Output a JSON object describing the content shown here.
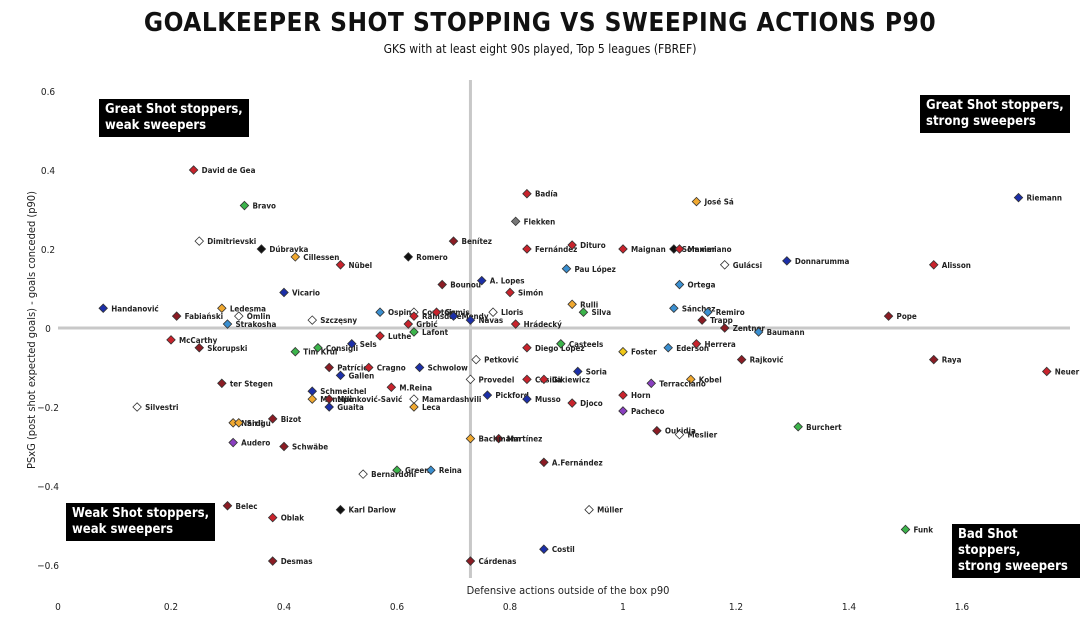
{
  "title": "GOALKEEPER SHOT STOPPING VS SWEEPING ACTIONS P90",
  "subtitle": "GKS with at least eight 90s played, Top 5 leagues (FBREF)",
  "quadrants": {
    "top_left": "Great Shot stoppers,\nweak sweepers",
    "top_right": "Great Shot stoppers,\nstrong sweepers",
    "bottom_left": "Weak  Shot stoppers,\nweak sweepers",
    "bottom_right": "Bad Shot stoppers,\nstrong sweepers"
  },
  "chart_data": {
    "type": "scatter",
    "xlabel": "Defensive actions outside of the box p90",
    "ylabel": "PSxG (post shot expected goals) - goals conceded (p90)",
    "xlim": [
      0,
      1.8
    ],
    "ylim": [
      -0.7,
      0.63
    ],
    "x_ticks": [
      0,
      0.2,
      0.4,
      0.6,
      0.8,
      1,
      1.2,
      1.4,
      1.6
    ],
    "y_ticks": [
      0.6,
      0.4,
      0.2,
      0,
      -0.2,
      -0.4,
      -0.6
    ],
    "reference_lines": {
      "x": 0.73,
      "y": 0
    },
    "grid": false,
    "points": [
      {
        "name": "David de Gea",
        "x": 0.24,
        "y": 0.4,
        "color": "#c8232c"
      },
      {
        "name": "Bravo",
        "x": 0.33,
        "y": 0.31,
        "color": "#3cb44b"
      },
      {
        "name": "Dimitrievski",
        "x": 0.25,
        "y": 0.22,
        "color": "#ffffff"
      },
      {
        "name": "Dúbravka",
        "x": 0.36,
        "y": 0.2,
        "color": "#111111"
      },
      {
        "name": "Cillessen",
        "x": 0.42,
        "y": 0.18,
        "color": "#f0a830"
      },
      {
        "name": "Nübel",
        "x": 0.5,
        "y": 0.16,
        "color": "#c8232c"
      },
      {
        "name": "Romero",
        "x": 0.62,
        "y": 0.18,
        "color": "#111111"
      },
      {
        "name": "Benítez",
        "x": 0.7,
        "y": 0.22,
        "color": "#8b1c24"
      },
      {
        "name": "Badía",
        "x": 0.83,
        "y": 0.34,
        "color": "#c8232c"
      },
      {
        "name": "Flekken",
        "x": 0.81,
        "y": 0.27,
        "color": "#777777"
      },
      {
        "name": "Fernández",
        "x": 0.83,
        "y": 0.2,
        "color": "#c8232c"
      },
      {
        "name": "Dituro",
        "x": 0.91,
        "y": 0.21,
        "color": "#c8232c"
      },
      {
        "name": "Maignan",
        "x": 1.0,
        "y": 0.2,
        "color": "#c8232c"
      },
      {
        "name": "Sommer",
        "x": 1.09,
        "y": 0.2,
        "color": "#111111"
      },
      {
        "name": "Maximiano",
        "x": 1.1,
        "y": 0.2,
        "color": "#c8232c"
      },
      {
        "name": "José Sá",
        "x": 1.13,
        "y": 0.32,
        "color": "#f0a830"
      },
      {
        "name": "Pau López",
        "x": 0.9,
        "y": 0.15,
        "color": "#3a8fd0"
      },
      {
        "name": "Gulácsi",
        "x": 1.18,
        "y": 0.16,
        "color": "#ffffff"
      },
      {
        "name": "Donnarumma",
        "x": 1.29,
        "y": 0.17,
        "color": "#1c2fa8"
      },
      {
        "name": "Alisson",
        "x": 1.55,
        "y": 0.16,
        "color": "#c8232c"
      },
      {
        "name": "Riemann",
        "x": 1.7,
        "y": 0.33,
        "color": "#1c2fa8"
      },
      {
        "name": "Handanović",
        "x": 0.08,
        "y": 0.05,
        "color": "#1c2fa8"
      },
      {
        "name": "Ledesma",
        "x": 0.29,
        "y": 0.05,
        "color": "#f0a830"
      },
      {
        "name": "Fabiański",
        "x": 0.21,
        "y": 0.03,
        "color": "#8b1c24"
      },
      {
        "name": "Ómlin",
        "x": 0.32,
        "y": 0.03,
        "color": "#ffffff"
      },
      {
        "name": "Strakosha",
        "x": 0.3,
        "y": 0.01,
        "color": "#3a8fd0"
      },
      {
        "name": "Vicario",
        "x": 0.4,
        "y": 0.09,
        "color": "#1c2fa8"
      },
      {
        "name": "Szczęsny",
        "x": 0.45,
        "y": 0.02,
        "color": "#ffffff"
      },
      {
        "name": "Ospina",
        "x": 0.57,
        "y": 0.04,
        "color": "#3a8fd0"
      },
      {
        "name": "Courtois",
        "x": 0.63,
        "y": 0.04,
        "color": "#ffffff"
      },
      {
        "name": "Ramsdale",
        "x": 0.63,
        "y": 0.03,
        "color": "#c8232c"
      },
      {
        "name": "Gomis",
        "x": 0.67,
        "y": 0.04,
        "color": "#c8232c"
      },
      {
        "name": "Mendy",
        "x": 0.7,
        "y": 0.03,
        "color": "#1c2fa8"
      },
      {
        "name": "Navas",
        "x": 0.73,
        "y": 0.02,
        "color": "#1c2fa8"
      },
      {
        "name": "Grbić",
        "x": 0.62,
        "y": 0.01,
        "color": "#c8232c"
      },
      {
        "name": "Lafont",
        "x": 0.63,
        "y": -0.01,
        "color": "#3cb44b"
      },
      {
        "name": "Bounou",
        "x": 0.68,
        "y": 0.11,
        "color": "#8b1c24"
      },
      {
        "name": "A. Lopes",
        "x": 0.75,
        "y": 0.12,
        "color": "#1c2fa8"
      },
      {
        "name": "Simón",
        "x": 0.8,
        "y": 0.09,
        "color": "#c8232c"
      },
      {
        "name": "Lloris",
        "x": 0.77,
        "y": 0.04,
        "color": "#ffffff"
      },
      {
        "name": "Hrádecký",
        "x": 0.81,
        "y": 0.01,
        "color": "#c8232c"
      },
      {
        "name": "Rulli",
        "x": 0.91,
        "y": 0.06,
        "color": "#f0a830"
      },
      {
        "name": "Silva",
        "x": 0.93,
        "y": 0.04,
        "color": "#3cb44b"
      },
      {
        "name": "Ortega",
        "x": 1.1,
        "y": 0.11,
        "color": "#3a8fd0"
      },
      {
        "name": "Sánchez",
        "x": 1.09,
        "y": 0.05,
        "color": "#3a8fd0"
      },
      {
        "name": "Remiro",
        "x": 1.15,
        "y": 0.04,
        "color": "#3a8fd0"
      },
      {
        "name": "Trapp",
        "x": 1.14,
        "y": 0.02,
        "color": "#8b1c24"
      },
      {
        "name": "Pope",
        "x": 1.47,
        "y": 0.03,
        "color": "#8b1c24"
      },
      {
        "name": "Zentner",
        "x": 1.18,
        "y": 0.0,
        "color": "#8b1c24"
      },
      {
        "name": "Baumann",
        "x": 1.24,
        "y": -0.01,
        "color": "#3a8fd0"
      },
      {
        "name": "McCarthy",
        "x": 0.2,
        "y": -0.03,
        "color": "#c8232c"
      },
      {
        "name": "Skorupski",
        "x": 0.25,
        "y": -0.05,
        "color": "#8b1c24"
      },
      {
        "name": "Tim Krul",
        "x": 0.42,
        "y": -0.06,
        "color": "#3cb44b"
      },
      {
        "name": "Consigli",
        "x": 0.46,
        "y": -0.05,
        "color": "#3cb44b"
      },
      {
        "name": "Sels",
        "x": 0.52,
        "y": -0.04,
        "color": "#1c2fa8"
      },
      {
        "name": "Luthe",
        "x": 0.57,
        "y": -0.02,
        "color": "#c8232c"
      },
      {
        "name": "Patrício",
        "x": 0.48,
        "y": -0.1,
        "color": "#8b1c24"
      },
      {
        "name": "Gallen",
        "x": 0.5,
        "y": -0.12,
        "color": "#1c2fa8"
      },
      {
        "name": "Cragno",
        "x": 0.55,
        "y": -0.1,
        "color": "#c8232c"
      },
      {
        "name": "Schwolow",
        "x": 0.64,
        "y": -0.1,
        "color": "#1c2fa8"
      },
      {
        "name": "Petković",
        "x": 0.74,
        "y": -0.08,
        "color": "#ffffff"
      },
      {
        "name": "Provedel",
        "x": 0.73,
        "y": -0.13,
        "color": "#ffffff"
      },
      {
        "name": "Diego López",
        "x": 0.83,
        "y": -0.05,
        "color": "#c8232c"
      },
      {
        "name": "Casteels",
        "x": 0.89,
        "y": -0.04,
        "color": "#3cb44b"
      },
      {
        "name": "Casilla",
        "x": 0.83,
        "y": -0.13,
        "color": "#c8232c"
      },
      {
        "name": "Gikiewicz",
        "x": 0.86,
        "y": -0.13,
        "color": "#c8232c"
      },
      {
        "name": "Soria",
        "x": 0.92,
        "y": -0.11,
        "color": "#1c2fa8"
      },
      {
        "name": "Foster",
        "x": 1.0,
        "y": -0.06,
        "color": "#f0c818"
      },
      {
        "name": "Ederson",
        "x": 1.08,
        "y": -0.05,
        "color": "#3a8fd0"
      },
      {
        "name": "Herrera",
        "x": 1.13,
        "y": -0.04,
        "color": "#c8232c"
      },
      {
        "name": "Rajković",
        "x": 1.21,
        "y": -0.08,
        "color": "#8b1c24"
      },
      {
        "name": "Raya",
        "x": 1.55,
        "y": -0.08,
        "color": "#8b1c24"
      },
      {
        "name": "Neuer",
        "x": 1.75,
        "y": -0.11,
        "color": "#c8232c"
      },
      {
        "name": "Kobel",
        "x": 1.12,
        "y": -0.13,
        "color": "#f0a830"
      },
      {
        "name": "Terracciano",
        "x": 1.05,
        "y": -0.14,
        "color": "#8a3fc0"
      },
      {
        "name": "ter Stegen",
        "x": 0.29,
        "y": -0.14,
        "color": "#8b1c24"
      },
      {
        "name": "Schmeichel",
        "x": 0.45,
        "y": -0.16,
        "color": "#1c2fa8"
      },
      {
        "name": "Montipò",
        "x": 0.45,
        "y": -0.18,
        "color": "#f0a830"
      },
      {
        "name": "Milinković-Savić",
        "x": 0.48,
        "y": -0.18,
        "color": "#8b1c24"
      },
      {
        "name": "Guaita",
        "x": 0.48,
        "y": -0.2,
        "color": "#1c2fa8"
      },
      {
        "name": "M.Reina",
        "x": 0.59,
        "y": -0.15,
        "color": "#c8232c"
      },
      {
        "name": "Mamardashvili",
        "x": 0.63,
        "y": -0.18,
        "color": "#ffffff"
      },
      {
        "name": "Leca",
        "x": 0.63,
        "y": -0.2,
        "color": "#f0a830"
      },
      {
        "name": "Pickford",
        "x": 0.76,
        "y": -0.17,
        "color": "#1c2fa8"
      },
      {
        "name": "Musso",
        "x": 0.83,
        "y": -0.18,
        "color": "#1c2fa8"
      },
      {
        "name": "Djoco",
        "x": 0.91,
        "y": -0.19,
        "color": "#c8232c"
      },
      {
        "name": "Horn",
        "x": 1.0,
        "y": -0.17,
        "color": "#c8232c"
      },
      {
        "name": "Pacheco",
        "x": 1.0,
        "y": -0.21,
        "color": "#8a3fc0"
      },
      {
        "name": "Burchert",
        "x": 1.31,
        "y": -0.25,
        "color": "#3cb44b"
      },
      {
        "name": "Silvestri",
        "x": 0.14,
        "y": -0.2,
        "color": "#ffffff"
      },
      {
        "name": "Nardi",
        "x": 0.31,
        "y": -0.24,
        "color": "#f0a830"
      },
      {
        "name": "Sirigu",
        "x": 0.32,
        "y": -0.24,
        "color": "#f0a830"
      },
      {
        "name": "Bizot",
        "x": 0.38,
        "y": -0.23,
        "color": "#8b1c24"
      },
      {
        "name": "Audero",
        "x": 0.31,
        "y": -0.29,
        "color": "#8a3fc0"
      },
      {
        "name": "Schwäbe",
        "x": 0.4,
        "y": -0.3,
        "color": "#8b1c24"
      },
      {
        "name": "Martínez",
        "x": 0.78,
        "y": -0.28,
        "color": "#8b1c24"
      },
      {
        "name": "Bachmann",
        "x": 0.73,
        "y": -0.28,
        "color": "#f0a830"
      },
      {
        "name": "Oukidja",
        "x": 1.06,
        "y": -0.26,
        "color": "#8b1c24"
      },
      {
        "name": "Meslier",
        "x": 1.1,
        "y": -0.27,
        "color": "#ffffff"
      },
      {
        "name": "A.Fernández",
        "x": 0.86,
        "y": -0.34,
        "color": "#8b1c24"
      },
      {
        "name": "Green",
        "x": 0.6,
        "y": -0.36,
        "color": "#3cb44b"
      },
      {
        "name": "Reina",
        "x": 0.66,
        "y": -0.36,
        "color": "#3a8fd0"
      },
      {
        "name": "Bernardoni",
        "x": 0.54,
        "y": -0.37,
        "color": "#ffffff"
      },
      {
        "name": "Belec",
        "x": 0.3,
        "y": -0.45,
        "color": "#8b1c24"
      },
      {
        "name": "Oblak",
        "x": 0.38,
        "y": -0.48,
        "color": "#c8232c"
      },
      {
        "name": "Karl Darlow",
        "x": 0.5,
        "y": -0.46,
        "color": "#111111"
      },
      {
        "name": "Müller",
        "x": 0.94,
        "y": -0.46,
        "color": "#ffffff"
      },
      {
        "name": "Funk",
        "x": 1.5,
        "y": -0.51,
        "color": "#3cb44b"
      },
      {
        "name": "Desmas",
        "x": 0.38,
        "y": -0.59,
        "color": "#8b1c24"
      },
      {
        "name": "Cárdenas",
        "x": 0.73,
        "y": -0.59,
        "color": "#8b1c24"
      },
      {
        "name": "Costil",
        "x": 0.86,
        "y": -0.56,
        "color": "#1c2fa8"
      }
    ]
  }
}
